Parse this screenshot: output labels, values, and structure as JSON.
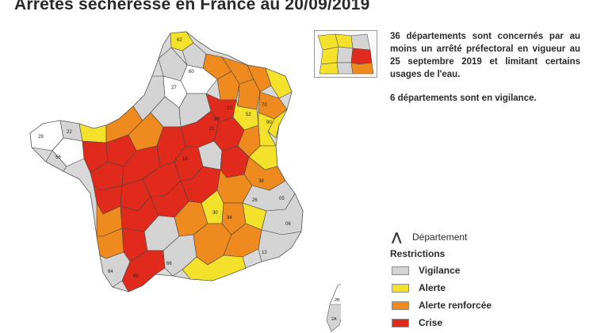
{
  "title": "Arrêtés sécheresse en France au 20/09/2019",
  "info": {
    "line1": "36 départements sont concernés par au moins un arrêté préfectoral en vigueur au 25 septembre 2019 et limitant certains usages de l'eau.",
    "line2": "6 départements sont en vigilance."
  },
  "legend": {
    "department_glyph": "⋀",
    "department_label": "Département",
    "restrictions_heading": "Restrictions",
    "items": [
      {
        "label": "Vigilance",
        "color": "#d4d4d4"
      },
      {
        "label": "Alerte",
        "color": "#f3e12b"
      },
      {
        "label": "Alerte renforcée",
        "color": "#ef8a1e"
      },
      {
        "label": "Crise",
        "color": "#e02a1c"
      }
    ]
  },
  "map_labels": [
    "62",
    "27",
    "29",
    "22",
    "56",
    "34",
    "30",
    "64",
    "65",
    "66",
    "2A",
    "2B",
    "21",
    "90",
    "38",
    "05",
    "26",
    "06",
    "13",
    "18",
    "70",
    "52",
    "10",
    "89",
    "60"
  ]
}
